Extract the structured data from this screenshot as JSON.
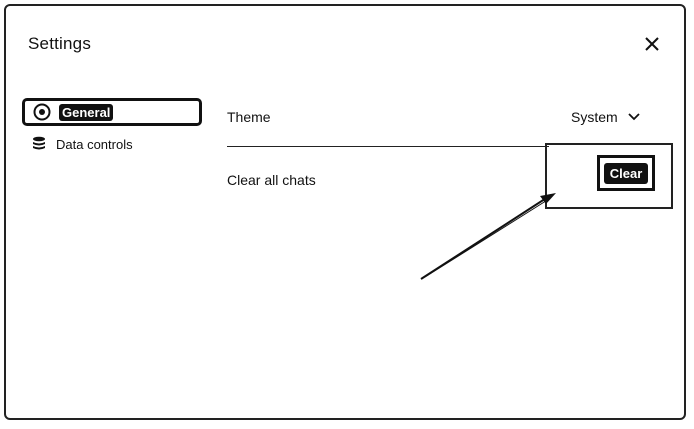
{
  "dialog": {
    "title": "Settings",
    "close_icon": "close-icon"
  },
  "sidebar": {
    "items": [
      {
        "label": "General",
        "icon": "gear-icon",
        "active": true
      },
      {
        "label": "Data controls",
        "icon": "database-icon",
        "active": false
      }
    ]
  },
  "settings": {
    "theme": {
      "label": "Theme",
      "value": "System",
      "icon": "chevron-down-icon"
    },
    "clear_chats": {
      "label": "Clear all chats",
      "button_label": "Clear"
    }
  }
}
